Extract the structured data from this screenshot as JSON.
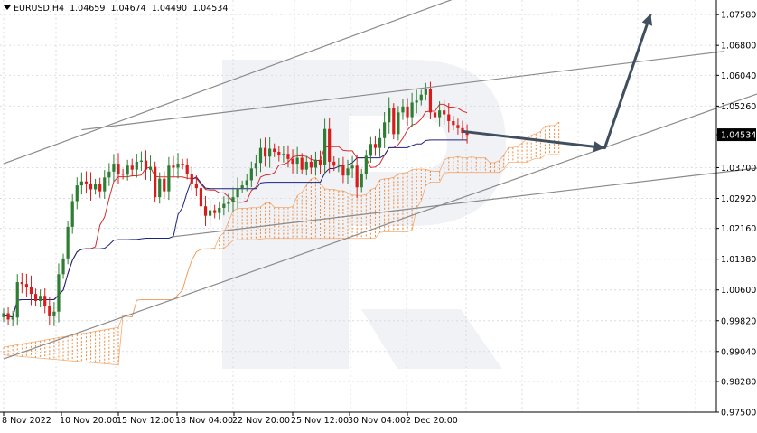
{
  "header": {
    "symbol": "EURUSD,H4",
    "open": "1.04659",
    "high": "1.04674",
    "low": "1.04490",
    "close": "1.04534"
  },
  "chart_data": {
    "type": "candlestick",
    "symbol": "EURUSD",
    "timeframe": "H4",
    "ylim": [
      0.975,
      1.0795
    ],
    "y_ticks": [
      "1.07580",
      "1.06800",
      "1.06040",
      "1.05260",
      "1.04534",
      "1.03700",
      "1.02920",
      "1.02160",
      "1.01380",
      "1.00600",
      "0.99820",
      "0.99040",
      "0.98280",
      "0.97500"
    ],
    "current_price": "1.04534",
    "x_ticks": [
      "8 Nov 2022",
      "10 Nov 20:00",
      "15 Nov 12:00",
      "18 Nov 04:00",
      "22 Nov 20:00",
      "25 Nov 12:00",
      "30 Nov 04:00",
      "2 Dec 20:00"
    ],
    "grid": true,
    "colors": {
      "bull_candle": "#2e7d32",
      "bear_candle": "#d81b1b",
      "tenkan": "#d32f2f",
      "kijun": "#1a237e",
      "cloud_bull": "#f08a3c",
      "cloud_bear": "#9c6fc9",
      "trendline": "#8a8a8a",
      "arrow": "#3f4f5f",
      "price_label_bg": "#000000",
      "watermark": "#e3e7ec"
    },
    "closes": [
      1.0001,
      0.9985,
      0.999,
      1.008,
      1.0075,
      1.0068,
      1.005,
      1.0032,
      1.0045,
      1.002,
      0.9993,
      1.0005,
      1.01,
      1.014,
      1.022,
      1.0285,
      1.0325,
      1.0335,
      1.033,
      1.0315,
      1.0328,
      1.031,
      1.0345,
      1.036,
      1.038,
      1.0355,
      1.0352,
      1.0375,
      1.0365,
      1.0385,
      1.0388,
      1.0365,
      1.0372,
      1.0295,
      1.0342,
      1.031,
      1.0375,
      1.037,
      1.038,
      1.0378,
      1.0355,
      1.033,
      1.0318,
      1.0272,
      1.0248,
      1.0262,
      1.0255,
      1.0268,
      1.0278,
      1.0282,
      1.0295,
      1.0318,
      1.0325,
      1.0338,
      1.0368,
      1.0382,
      1.042,
      1.0398,
      1.0418,
      1.041,
      1.0402,
      1.0405,
      1.0392,
      1.038,
      1.0395,
      1.0365,
      1.0385,
      1.037,
      1.039,
      1.0378,
      1.0468,
      1.0385,
      1.0375,
      1.0378,
      1.035,
      1.0368,
      1.0375,
      1.032,
      1.0355,
      1.04,
      1.043,
      1.042,
      1.0445,
      1.0485,
      1.052,
      1.0455,
      1.051,
      1.0525,
      1.0498,
      1.0535,
      1.054,
      1.0555,
      1.057,
      1.051,
      1.0498,
      1.0515,
      1.0505,
      1.0488,
      1.0478,
      1.047,
      1.0458,
      1.0453
    ],
    "trendlines": [
      {
        "points": [
          [
            0,
            1.038
          ],
          [
            108,
            1.084
          ]
        ]
      },
      {
        "points": [
          [
            17,
            1.0466
          ],
          [
            157,
            1.0665
          ]
        ]
      },
      {
        "points": [
          [
            0,
            0.9885
          ],
          [
            176,
            1.0605
          ]
        ]
      },
      {
        "points": [
          [
            37,
            1.0195
          ],
          [
            176,
            1.0385
          ]
        ]
      }
    ],
    "forecast_path": [
      [
        100,
        1.0462
      ],
      [
        131,
        1.042
      ],
      [
        141,
        1.076
      ]
    ]
  }
}
